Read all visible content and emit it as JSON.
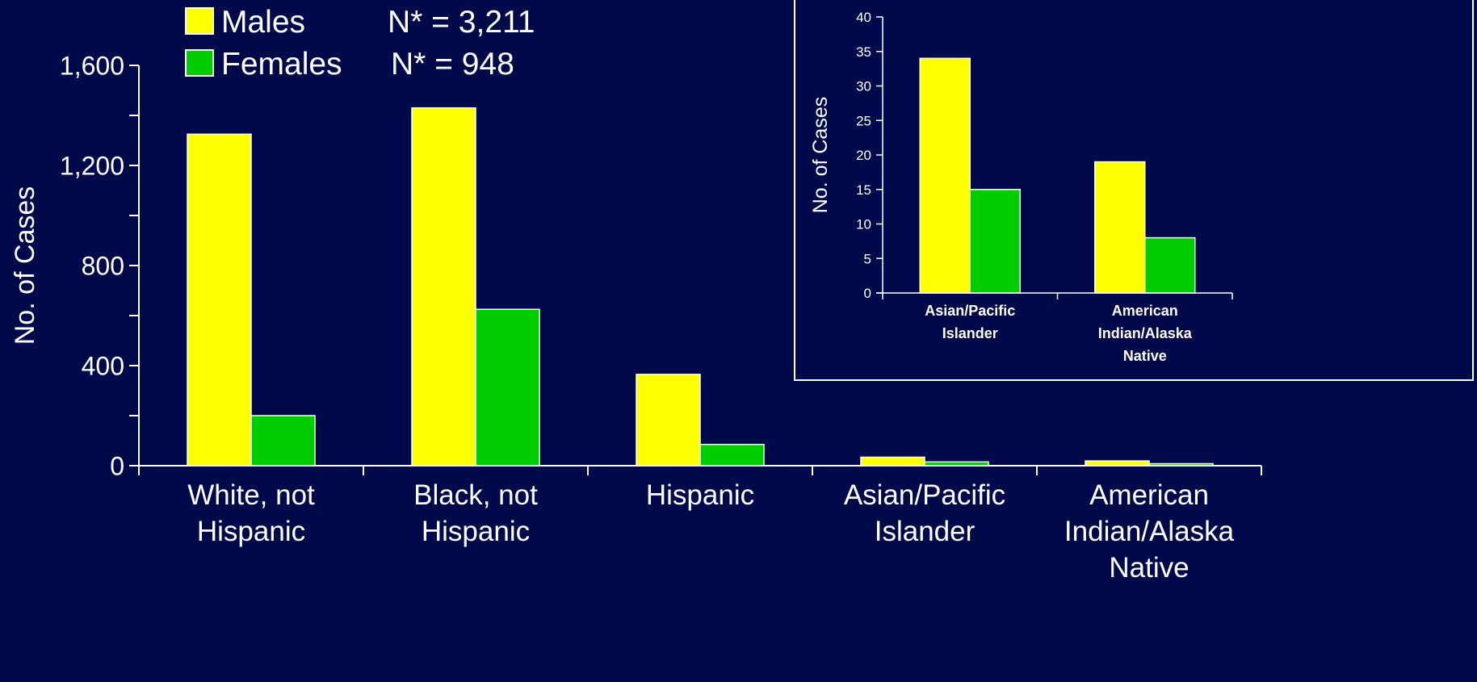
{
  "colors": {
    "background": "#000a4a",
    "males": "#ffff00",
    "females": "#00cc00",
    "axis": "#ffffff",
    "text": "#ffffff"
  },
  "legend": {
    "items": [
      {
        "label": "Males",
        "n_text": "N* = 3,211"
      },
      {
        "label": "Females",
        "n_text": "N* = 948"
      }
    ]
  },
  "chart_data": [
    {
      "type": "bar",
      "ylabel": "No. of Cases",
      "ylim": [
        0,
        1600
      ],
      "yticks": [
        "0",
        "400",
        "800",
        "1,200",
        "1,600"
      ],
      "categories": [
        [
          "White, not",
          "Hispanic"
        ],
        [
          "Black, not",
          "Hispanic"
        ],
        [
          "Hispanic"
        ],
        [
          "Asian/Pacific",
          "Islander"
        ],
        [
          "American",
          "Indian/Alaska",
          "Native"
        ]
      ],
      "series": [
        {
          "name": "Males",
          "values": [
            1325,
            1430,
            365,
            34,
            19
          ]
        },
        {
          "name": "Females",
          "values": [
            200,
            625,
            85,
            15,
            8
          ]
        }
      ],
      "legend": "top-left",
      "grid": false
    },
    {
      "type": "bar",
      "ylabel": "No. of Cases",
      "ylim": [
        0,
        40
      ],
      "yticks": [
        "0",
        "5",
        "10",
        "15",
        "20",
        "25",
        "30",
        "35",
        "40"
      ],
      "categories": [
        [
          "Asian/Pacific",
          "Islander"
        ],
        [
          "American",
          "Indian/Alaska",
          "Native"
        ]
      ],
      "series": [
        {
          "name": "Males",
          "values": [
            34,
            19
          ]
        },
        {
          "name": "Females",
          "values": [
            15,
            8
          ]
        }
      ],
      "grid": false
    }
  ]
}
